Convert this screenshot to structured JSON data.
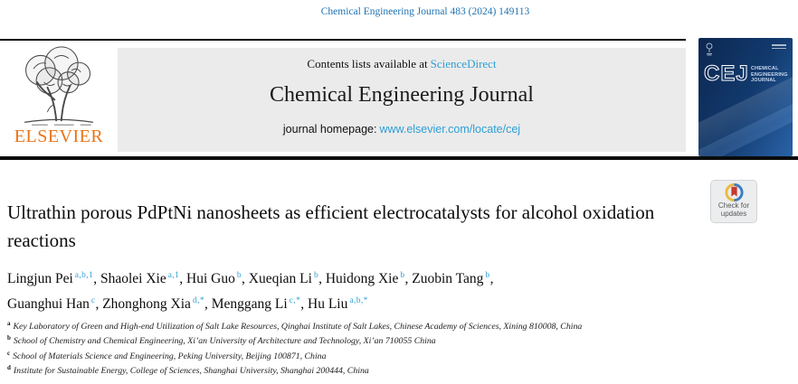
{
  "citation": "Chemical Engineering Journal 483 (2024) 149113",
  "banner": {
    "contents_text": "Contents lists available at",
    "sciencedirect_link": "ScienceDirect",
    "journal_title": "Chemical Engineering Journal",
    "homepage_label": "journal homepage:",
    "homepage_url": "www.elsevier.com/locate/cej"
  },
  "publisher": {
    "wordmark": "ELSEVIER"
  },
  "cover": {
    "abbrev": "CEJ",
    "title_lines": [
      "CHEMICAL",
      "ENGINEERING",
      "JOURNAL"
    ]
  },
  "article": {
    "title": "Ultrathin porous PdPtNi nanosheets as efficient electrocatalysts for alcohol oxidation reactions",
    "authors": [
      {
        "name": "Lingjun Pei",
        "sup": "a,b,1"
      },
      {
        "name": "Shaolei Xie",
        "sup": "a,1"
      },
      {
        "name": "Hui Guo",
        "sup": "b"
      },
      {
        "name": "Xueqian Li",
        "sup": "b"
      },
      {
        "name": "Huidong Xie",
        "sup": "b"
      },
      {
        "name": "Zuobin Tang",
        "sup": "b"
      },
      {
        "name": "Guanghui Han",
        "sup": "c"
      },
      {
        "name": "Zhonghong Xia",
        "sup": "d,*"
      },
      {
        "name": "Menggang Li",
        "sup": "c,*"
      },
      {
        "name": "Hu Liu",
        "sup": "a,b,*"
      }
    ],
    "affiliations": [
      {
        "marker": "a",
        "text": "Key Laboratory of Green and High-end Utilization of Salt Lake Resources, Qinghai Institute of Salt Lakes, Chinese Academy of Sciences, Xining 810008, China"
      },
      {
        "marker": "b",
        "text": "School of Chemistry and Chemical Engineering, Xi’an University of Architecture and Technology, Xi’an 710055 China"
      },
      {
        "marker": "c",
        "text": "School of Materials Science and Engineering, Peking University, Beijing 100871, China"
      },
      {
        "marker": "d",
        "text": "Institute for Sustainable Energy, College of Sciences, Shanghai University, Shanghai 200444, China"
      }
    ]
  },
  "badge": {
    "line1": "Check for",
    "line2": "updates"
  },
  "colors": {
    "link_blue": "#2E9FD6",
    "citation_blue": "#2173B2",
    "superscript_blue": "#2E9FD6",
    "elsevier_orange": "#E8751A",
    "banner_gray": "#EBEBEB",
    "cover_navy": "#123A6E",
    "crossmark_red": "#C8392F",
    "crossmark_yellow": "#EDBA3E",
    "crossmark_blue": "#3B7DC4"
  }
}
